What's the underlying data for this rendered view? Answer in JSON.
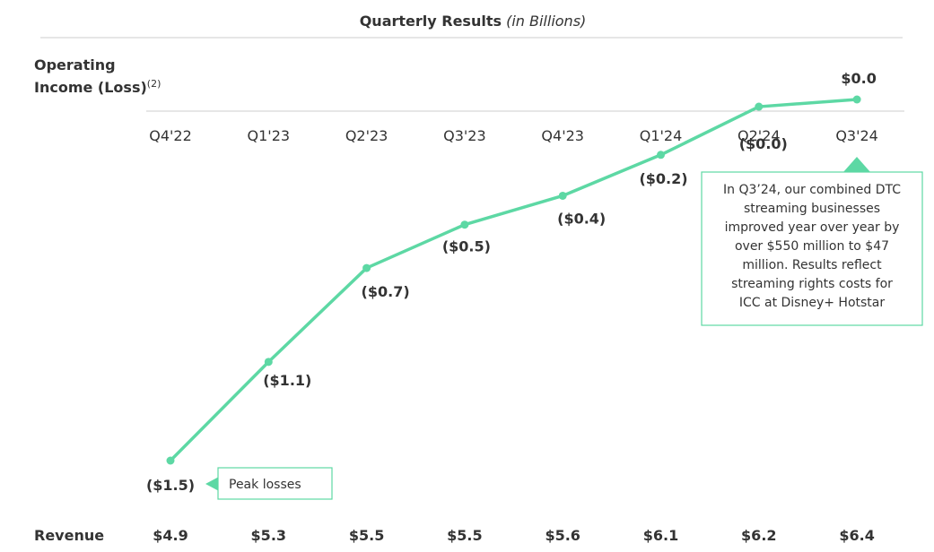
{
  "header": {
    "title": "Quarterly Results",
    "title_note": "(in Billions)"
  },
  "row_labels": {
    "operating_line1": "Operating",
    "operating_line2": "Income (Loss)",
    "operating_footnote": "(2)",
    "revenue": "Revenue"
  },
  "chart_data": {
    "type": "line",
    "categories": [
      "Q4'22",
      "Q1'23",
      "Q2'23",
      "Q3'23",
      "Q4'23",
      "Q1'24",
      "Q2'24",
      "Q3'24"
    ],
    "series": [
      {
        "name": "Operating Income (Loss)",
        "values": [
          -1.5,
          -1.1,
          -0.7,
          -0.5,
          -0.4,
          -0.2,
          -0.0,
          0.0
        ],
        "labels": [
          "($1.5)",
          "($1.1)",
          "($0.7)",
          "($0.5)",
          "($0.4)",
          "($0.2)",
          "($0.0)",
          "$0.0"
        ],
        "plot_values": [
          -1.5,
          -1.09,
          -0.7,
          -0.52,
          -0.4,
          -0.23,
          -0.03,
          0.0
        ]
      }
    ],
    "revenue": {
      "values": [
        4.9,
        5.3,
        5.5,
        5.5,
        5.6,
        6.1,
        6.2,
        6.4
      ],
      "labels": [
        "$4.9",
        "$5.3",
        "$5.5",
        "$5.5",
        "$5.6",
        "$6.1",
        "$6.2",
        "$6.4"
      ]
    },
    "ylim": [
      -1.5,
      0.0
    ],
    "grid": false,
    "line_color": "#5dd8a4"
  },
  "callouts": {
    "peak": "Peak losses",
    "q3_lines": [
      "In Q3’24, our combined DTC",
      "streaming businesses",
      "improved year over year by",
      "over $550 million to $47",
      "million. Results reflect",
      "streaming rights costs for",
      "ICC at Disney+ Hotstar"
    ]
  },
  "colors": {
    "accent": "#5dd8a4",
    "text": "#333333",
    "rule": "#cccccc"
  }
}
